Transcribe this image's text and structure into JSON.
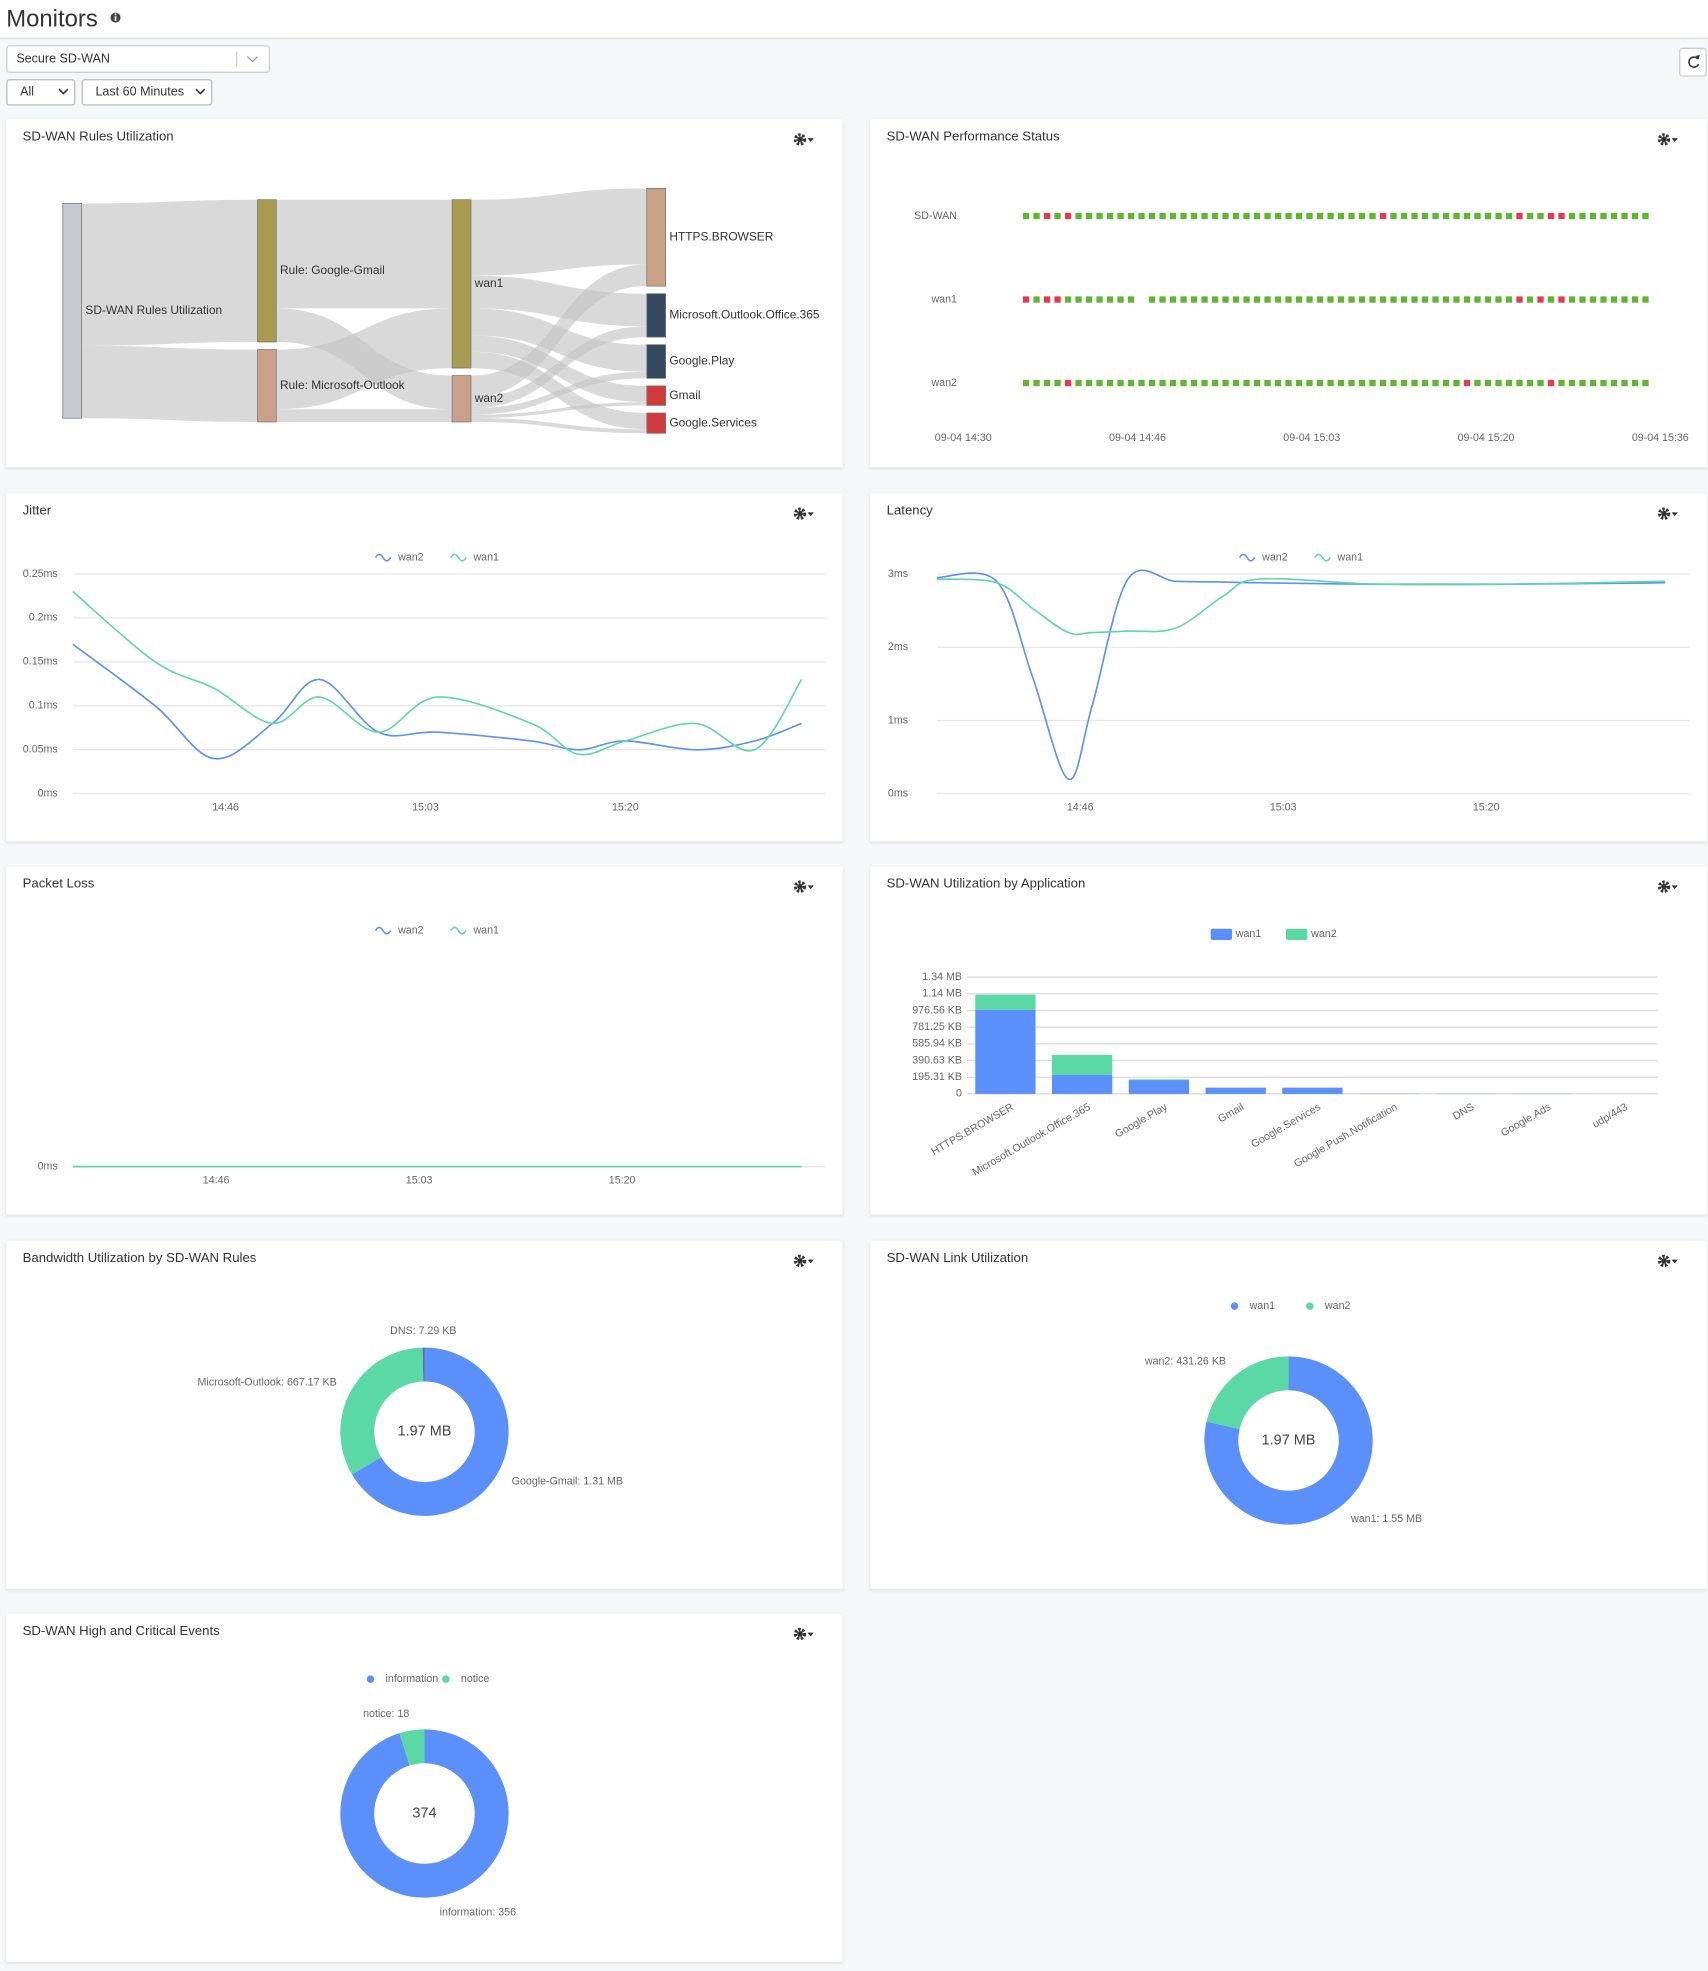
{
  "header": {
    "title": "Monitors",
    "device": "Secure SD-WAN",
    "filter": "All",
    "time_range": "Last 60 Minutes"
  },
  "panels": [
    {
      "title": "SD-WAN Rules Utilization",
      "chart": {
        "type": "sankey",
        "nodes": [
          {
            "label": "SD-WAN Rules Utilization",
            "color": "#c5cbd1"
          },
          {
            "label": "Rule: Google-Gmail",
            "color": "#a89a4f"
          },
          {
            "label": "Rule: Microsoft-Outlook",
            "color": "#c9a088"
          },
          {
            "label": "wan1",
            "color": "#a89a4f"
          },
          {
            "label": "wan2",
            "color": "#c9a088"
          },
          {
            "label": "HTTPS.BROWSER",
            "color": "#c9a088"
          },
          {
            "label": "Microsoft.Outlook.Office.365",
            "color": "#34495e"
          },
          {
            "label": "Google.Play",
            "color": "#34495e"
          },
          {
            "label": "Gmail",
            "color": "#d03a3a"
          },
          {
            "label": "Google.Services",
            "color": "#d03a3a"
          }
        ],
        "links": [
          {
            "source": 0,
            "target": 1,
            "value": 1310
          },
          {
            "source": 0,
            "target": 2,
            "value": 667
          },
          {
            "source": 1,
            "target": 3,
            "value": 1000
          },
          {
            "source": 1,
            "target": 4,
            "value": 310
          },
          {
            "source": 2,
            "target": 3,
            "value": 550
          },
          {
            "source": 2,
            "target": 4,
            "value": 117
          },
          {
            "source": 3,
            "target": 5,
            "value": 700
          },
          {
            "source": 3,
            "target": 6,
            "value": 300
          },
          {
            "source": 3,
            "target": 7,
            "value": 250
          },
          {
            "source": 3,
            "target": 8,
            "value": 150
          },
          {
            "source": 3,
            "target": 9,
            "value": 150
          },
          {
            "source": 4,
            "target": 5,
            "value": 200
          },
          {
            "source": 4,
            "target": 6,
            "value": 100
          },
          {
            "source": 4,
            "target": 7,
            "value": 60
          },
          {
            "source": 4,
            "target": 8,
            "value": 30
          },
          {
            "source": 4,
            "target": 9,
            "value": 37
          }
        ]
      }
    },
    {
      "title": "SD-WAN Performance Status",
      "chart": {
        "type": "status",
        "colors": [
          "#5fb531",
          "#e8384f"
        ],
        "xticks": [
          "09-04 14:30",
          "09-04 14:46",
          "09-04 15:03",
          "09-04 15:20",
          "09-04 15:36"
        ],
        "rows": [
          {
            "name": "SD-WAN",
            "statuses": [
              0,
              0,
              1,
              0,
              1,
              0,
              0,
              0,
              0,
              0,
              0,
              0,
              0,
              0,
              0,
              0,
              0,
              0,
              0,
              0,
              0,
              0,
              0,
              0,
              0,
              0,
              0,
              0,
              0,
              0,
              0,
              0,
              0,
              0,
              1,
              0,
              0,
              0,
              0,
              0,
              0,
              0,
              0,
              0,
              0,
              0,
              0,
              1,
              0,
              0,
              1,
              1,
              0,
              0,
              0,
              0,
              0,
              0,
              0,
              0
            ]
          },
          {
            "name": "wan1",
            "statuses": [
              1,
              0,
              1,
              1,
              0,
              0,
              0,
              0,
              0,
              0,
              0,
              null,
              0,
              0,
              0,
              0,
              0,
              0,
              0,
              0,
              0,
              0,
              0,
              0,
              0,
              0,
              0,
              0,
              0,
              0,
              0,
              0,
              0,
              0,
              0,
              0,
              0,
              0,
              0,
              0,
              0,
              0,
              0,
              0,
              0,
              0,
              0,
              1,
              0,
              1,
              0,
              1,
              0,
              0,
              0,
              0,
              0,
              0,
              0,
              0
            ]
          },
          {
            "name": "wan2",
            "statuses": [
              0,
              0,
              0,
              0,
              1,
              0,
              0,
              0,
              0,
              0,
              0,
              0,
              0,
              0,
              0,
              0,
              0,
              0,
              0,
              0,
              0,
              0,
              0,
              0,
              0,
              0,
              0,
              0,
              0,
              0,
              0,
              0,
              0,
              0,
              0,
              0,
              0,
              0,
              0,
              0,
              0,
              0,
              1,
              0,
              0,
              0,
              0,
              0,
              0,
              0,
              1,
              0,
              0,
              0,
              0,
              0,
              0,
              0,
              0,
              0
            ]
          }
        ]
      }
    },
    {
      "title": "Jitter",
      "chart": {
        "type": "line",
        "legend": true,
        "grid": true,
        "x": [
          "14:33",
          "14:40",
          "14:45",
          "14:50",
          "14:54",
          "14:59",
          "15:04",
          "15:12",
          "15:16",
          "15:20",
          "15:26",
          "15:31",
          "15:35"
        ],
        "series": [
          {
            "name": "wan2",
            "color": "#5b8ff9",
            "values": [
              0.17,
              0.1,
              0.04,
              0.08,
              0.13,
              0.07,
              0.07,
              0.06,
              0.05,
              0.06,
              0.05,
              0.06,
              0.08
            ]
          },
          {
            "name": "wan1",
            "color": "#5ad8a6",
            "values": [
              0.23,
              0.15,
              0.12,
              0.08,
              0.11,
              0.07,
              0.11,
              0.08,
              0.045,
              0.06,
              0.08,
              0.05,
              0.13
            ]
          }
        ],
        "xlim": [
          "14:33",
          "15:37"
        ],
        "xticks": [
          "14:46",
          "15:03",
          "15:20"
        ],
        "ylim": [
          0,
          0.25
        ],
        "yticks": [
          {
            "value": 0,
            "label": "0ms"
          },
          {
            "value": 0.05,
            "label": "0.05ms"
          },
          {
            "value": 0.1,
            "label": "0.1ms"
          },
          {
            "value": 0.15,
            "label": "0.15ms"
          },
          {
            "value": 0.2,
            "label": "0.2ms"
          },
          {
            "value": 0.25,
            "label": "0.25ms"
          }
        ]
      }
    },
    {
      "title": "Latency",
      "chart": {
        "type": "line",
        "legend": true,
        "grid": true,
        "x": [
          "14:34",
          "14:39",
          "14:42",
          "14:45",
          "14:47",
          "14:50",
          "14:54",
          "14:58",
          "15:01",
          "15:11",
          "15:22",
          "15:35"
        ],
        "series": [
          {
            "name": "wan2",
            "color": "#5b8ff9",
            "values": [
              2.95,
              2.9,
              1.6,
              0.2,
              1.2,
              2.93,
              2.9,
              2.89,
              2.88,
              2.86,
              2.86,
              2.88
            ]
          },
          {
            "name": "wan1",
            "color": "#5ad8a6",
            "values": [
              2.93,
              2.88,
              2.53,
              2.2,
              2.2,
              2.22,
              2.26,
              2.7,
              2.93,
              2.86,
              2.86,
              2.9
            ]
          }
        ],
        "xlim": [
          "14:34",
          "15:37"
        ],
        "xticks": [
          "14:46",
          "15:03",
          "15:20"
        ],
        "ylim": [
          0,
          3
        ],
        "yticks": [
          {
            "value": 0,
            "label": "0ms"
          },
          {
            "value": 1,
            "label": "1ms"
          },
          {
            "value": 2,
            "label": "2ms"
          },
          {
            "value": 3,
            "label": "3ms"
          }
        ]
      }
    },
    {
      "title": "Packet Loss",
      "chart": {
        "type": "line",
        "legend": true,
        "grid": true,
        "x": [
          "14:34",
          "14:45",
          "15:00",
          "15:15",
          "15:35"
        ],
        "series": [
          {
            "name": "wan2",
            "color": "#5b8ff9",
            "values": [
              0,
              0,
              0,
              0,
              0
            ]
          },
          {
            "name": "wan1",
            "color": "#5ad8a6",
            "values": [
              0,
              0,
              0,
              0,
              0
            ]
          }
        ],
        "xlim": [
          "14:34",
          "15:37"
        ],
        "xticks": [
          "14:46",
          "15:03",
          "15:20"
        ],
        "ylim": [
          0,
          1
        ],
        "yticks": [
          {
            "value": 0,
            "label": "0ms"
          }
        ]
      }
    },
    {
      "title": "SD-WAN Utilization by Application",
      "chart": {
        "type": "stacked_bar",
        "legend": true,
        "grid": true,
        "categories": [
          "HTTPS.BROWSER",
          "Microsoft.Outlook.Office.365",
          "Google.Play",
          "Gmail",
          "Google.Services",
          "Google.Push.Notification",
          "DNS",
          "Google.Ads",
          "udp/443"
        ],
        "series": [
          {
            "name": "wan1",
            "color": "#5b8ff9",
            "values": [
              1008000,
              226000,
              166000,
              75000,
              75000,
              3000,
              2000,
              2000,
              1000
            ]
          },
          {
            "name": "wan2",
            "color": "#5ad8a6",
            "values": [
              181000,
              241000,
              8000,
              0,
              0,
              0,
              0,
              0,
              0
            ]
          }
        ],
        "ylim": [
          0,
          1400000
        ],
        "yticks": [
          0,
          {
            "value": 200000,
            "label": "195.31 KB"
          },
          {
            "value": 400000,
            "label": "390.63 KB"
          },
          {
            "value": 600000,
            "label": "585.94 KB"
          },
          {
            "value": 800000,
            "label": "781.25 KB"
          },
          {
            "value": 1000000,
            "label": "976.56 KB"
          },
          {
            "value": 1200000,
            "label": "1.14 MB"
          },
          {
            "value": 1400000,
            "label": "1.34 MB"
          }
        ]
      }
    },
    {
      "title": "Bandwidth Utilization by SD-WAN Rules",
      "chart": {
        "type": "donut",
        "legend": false,
        "values": [
          1373634,
          683182,
          7465
        ],
        "value_labels": [
          "Google-Gmail: 1.31 MB",
          "Microsoft-Outlook: 667.17 KB",
          "DNS: 7.29 KB"
        ],
        "colors": [
          "#5b8ff9",
          "#5ad8a6",
          "#5d7092"
        ],
        "center_label": "1.97 MB"
      }
    },
    {
      "title": "SD-WAN Link Utilization",
      "chart": {
        "type": "donut",
        "legend": true,
        "categories": [
          "wan1",
          "wan2"
        ],
        "values": [
          1625293,
          441610
        ],
        "value_labels": [
          "wan1: 1.55 MB",
          "wan2: 431.26 KB"
        ],
        "colors": [
          "#5b8ff9",
          "#5ad8a6"
        ],
        "center_label": "1.97 MB"
      }
    },
    {
      "title": "SD-WAN High and Critical Events",
      "chart": {
        "type": "donut",
        "legend": true,
        "categories": [
          "information",
          "notice"
        ],
        "values": [
          356,
          18
        ],
        "value_labels": [
          "information: 356",
          "notice: 18"
        ],
        "colors": [
          "#5b8ff9",
          "#5ad8a6"
        ],
        "center_label": 374
      }
    }
  ]
}
